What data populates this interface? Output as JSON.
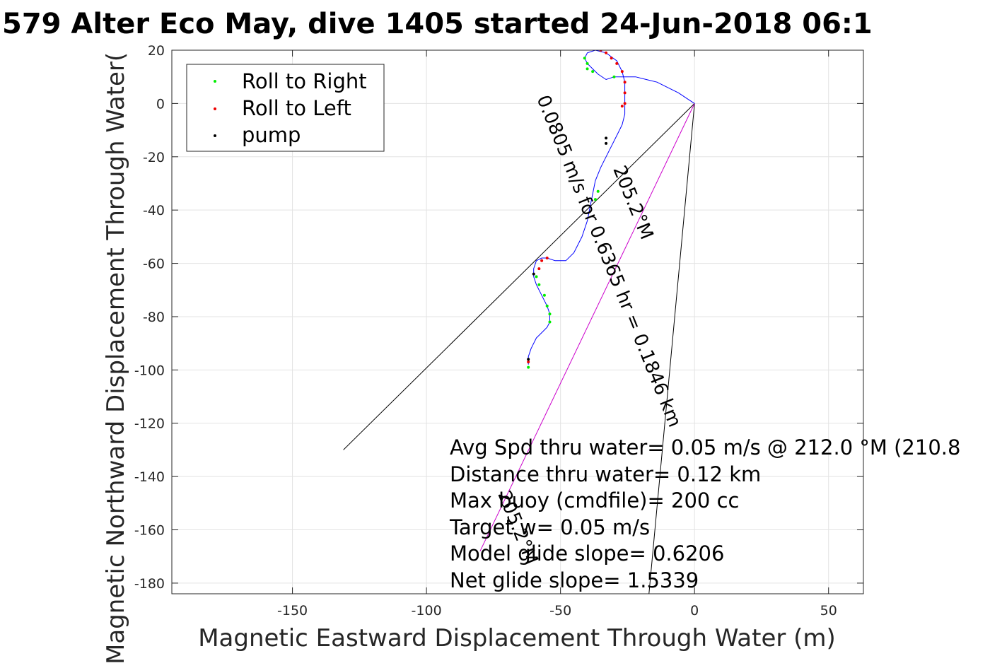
{
  "chart_data": {
    "type": "line",
    "title": "579 Alter Eco May, dive 1405 started 24-Jun-2018 06:1",
    "xlabel": "Magnetic Eastward Displacement Through Water (m)",
    "ylabel": "Magnetic Northward Displacement Through Water(",
    "xlim": [
      -195,
      63
    ],
    "ylim": [
      -184,
      20
    ],
    "xticks": [
      -150,
      -100,
      -50,
      0,
      50
    ],
    "yticks": [
      20,
      0,
      -20,
      -40,
      -60,
      -80,
      -100,
      -120,
      -140,
      -160,
      -180
    ],
    "grid": true,
    "legend": {
      "position": "top-left",
      "entries": [
        {
          "label": "Roll to Right",
          "color": "#00ee00"
        },
        {
          "label": "Roll to Left",
          "color": "#ee0000"
        },
        {
          "label": "pump",
          "color": "#000000"
        }
      ]
    },
    "series": [
      {
        "color": "#0000ff",
        "x": [
          0,
          -3,
          -6,
          -10,
          -14,
          -18,
          -22,
          -26,
          -30,
          -33,
          -36,
          -38,
          -40,
          -41,
          -40,
          -37,
          -33,
          -29,
          -27,
          -26,
          -26,
          -26,
          -26,
          -27,
          -29,
          -31,
          -33,
          -35,
          -37,
          -38,
          -39,
          -40,
          -42,
          -45,
          -48,
          -52,
          -55,
          -57,
          -59,
          -60,
          -60,
          -59,
          -57,
          -55,
          -54,
          -54,
          -55,
          -57,
          -59,
          -60,
          -61,
          -62,
          -62
        ],
        "y": [
          0,
          2,
          4,
          6,
          8,
          9,
          10,
          10,
          10,
          9,
          11,
          13,
          15,
          17,
          19,
          20,
          19,
          16,
          12,
          8,
          4,
          0,
          -4,
          -8,
          -12,
          -16,
          -20,
          -24,
          -29,
          -34,
          -39,
          -44,
          -50,
          -56,
          -59,
          -59,
          -58,
          -58,
          -59,
          -62,
          -65,
          -68,
          -72,
          -76,
          -79,
          -82,
          -84,
          -86,
          -88,
          -90,
          -92,
          -95,
          -98
        ]
      }
    ],
    "points": {
      "roll_right": {
        "x": [
          -40,
          -41,
          -40,
          -38,
          -30,
          -36,
          -37,
          -59,
          -58,
          -56,
          -55,
          -54,
          -54,
          -62
        ],
        "y": [
          15,
          17,
          13,
          12,
          10,
          -33,
          -36,
          -65,
          -68,
          -72,
          -76,
          -79,
          -82,
          -99
        ]
      },
      "roll_left": {
        "x": [
          -35,
          -33,
          -31,
          -29,
          -27,
          -26,
          -26,
          -26,
          -27,
          -58,
          -57,
          -55,
          -62
        ],
        "y": [
          20,
          19,
          17,
          15,
          12,
          8,
          4,
          0,
          -1,
          -62,
          -59,
          -58,
          -97
        ]
      },
      "pump": {
        "x": [
          -33,
          -33,
          -60,
          -62
        ],
        "y": [
          -13,
          -15,
          -64,
          -96
        ]
      }
    },
    "guide_lines": [
      {
        "color": "#000000",
        "x": [
          0,
          -131
        ],
        "y": [
          0,
          -130
        ]
      },
      {
        "color": "#000000",
        "x": [
          0,
          -17
        ],
        "y": [
          0,
          -184
        ]
      },
      {
        "color": "#cc00cc",
        "x": [
          0,
          -80
        ],
        "y": [
          0,
          -168
        ]
      }
    ],
    "rotated_labels": [
      {
        "text": "0.0805 m/s for 0.6365 hr = 0.1846 km",
        "x": -34,
        "y": -60,
        "angle_deg": 68
      },
      {
        "text": "205.2°M",
        "x": -25,
        "y": -38,
        "angle_deg": 68
      },
      {
        "text": "205.2°M",
        "x": -68,
        "y": -160,
        "angle_deg": 68
      }
    ],
    "annotations": [
      "Avg Spd thru water=  0.05 m/s @ 212.0 °M (210.8",
      "Distance thru water=  0.12 km",
      "Max buoy (cmdfile)= 200 cc",
      "Target w= 0.05 m/s",
      "Model glide slope= 0.6206",
      "Net glide slope= 1.5339"
    ]
  }
}
